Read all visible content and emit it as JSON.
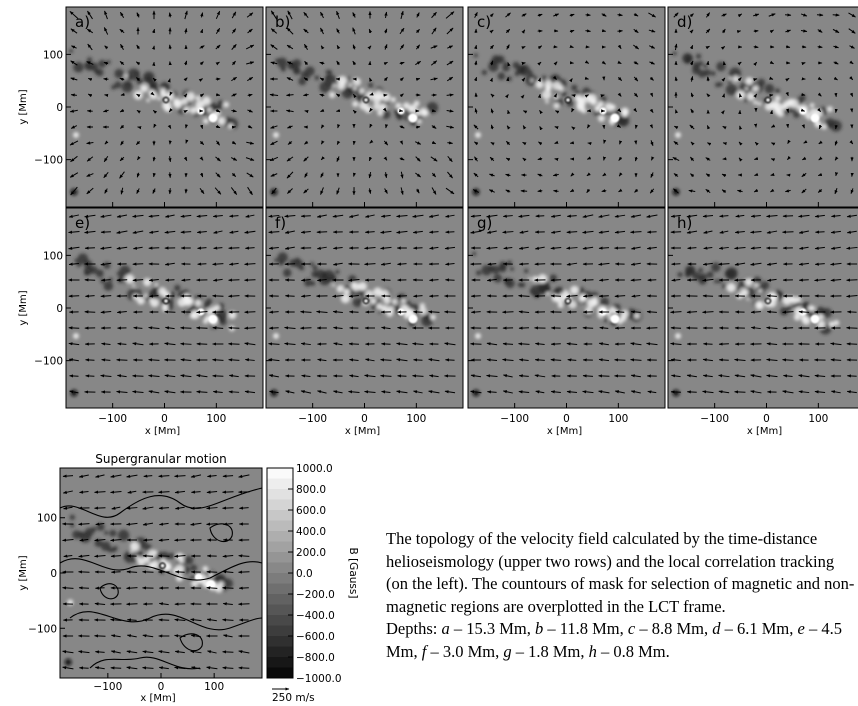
{
  "panels": [
    {
      "label": "a)",
      "depth_letter": "a",
      "depth": "15.3 Mm"
    },
    {
      "label": "b)",
      "depth_letter": "b",
      "depth": "11.8 Mm"
    },
    {
      "label": "c)",
      "depth_letter": "c",
      "depth": "8.8 Mm"
    },
    {
      "label": "d)",
      "depth_letter": "d",
      "depth": "6.1 Mm"
    },
    {
      "label": "e)",
      "depth_letter": "e",
      "depth": "4.5 Mm"
    },
    {
      "label": "f)",
      "depth_letter": "f",
      "depth": "3.0 Mm"
    },
    {
      "label": "g)",
      "depth_letter": "g",
      "depth": "1.8 Mm"
    },
    {
      "label": "h)",
      "depth_letter": "h",
      "depth": "0.8 Mm"
    }
  ],
  "axes": {
    "xlabel": "x [Mm]",
    "ylabel": "y [Mm]",
    "x_ticks": [
      "−100",
      "0",
      "100"
    ],
    "y_ticks": [
      "100",
      "0",
      "−100"
    ]
  },
  "lct": {
    "title": "Supergranular motion",
    "colorbar_title": "B [Gauss]",
    "colorbar_ticks": [
      "1000.0",
      "800.0",
      "600.0",
      "400.0",
      "200.0",
      "0.0",
      "−200.0",
      "−400.0",
      "−600.0",
      "−800.0",
      "−1000.0"
    ],
    "scale_arrow_label": "250 m/s"
  },
  "caption": {
    "para1": "The topology of the velocity field calculated by the time-distance helioseismology (upper two rows) and the local correlation tracking (on the left). The countours of mask for selection of magnetic and non-magnetic regions are overplotted in the LCT frame.",
    "depths_prefix": "Depths:"
  },
  "chart_data": {
    "type": "image",
    "x_range_Mm": [
      -190,
      190
    ],
    "y_range_Mm": [
      -190,
      190
    ],
    "colorbar_range_gauss": [
      -1000,
      1000
    ],
    "colors": {
      "background": "#878787",
      "arrow": "#000000"
    }
  }
}
